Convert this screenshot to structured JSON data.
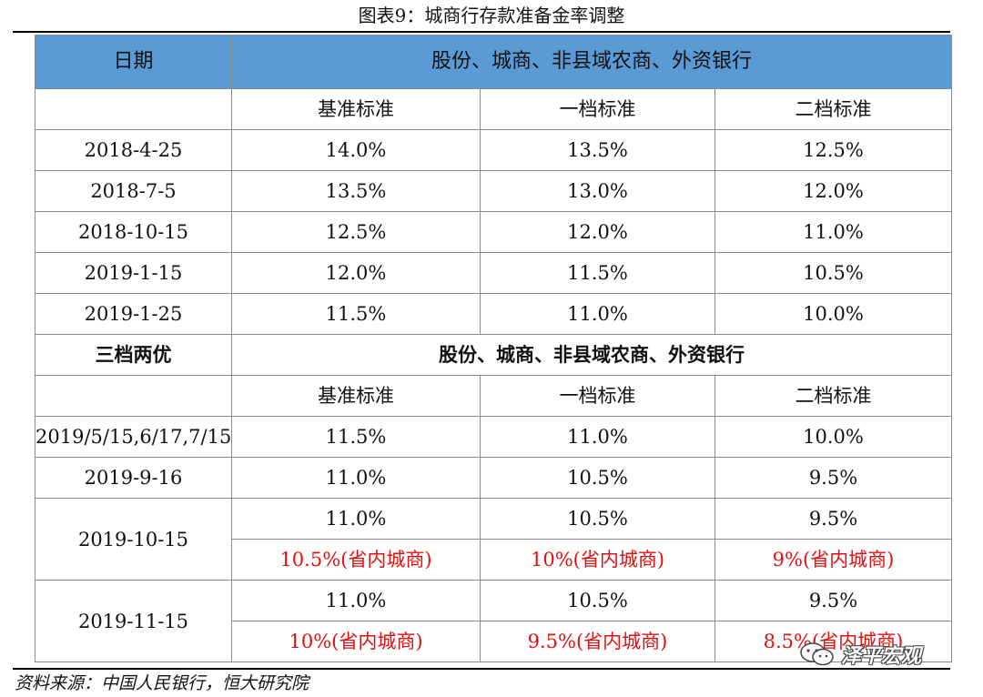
{
  "title": "图表9：城商行存款准备金率调整",
  "header": {
    "date": "日期",
    "banks": "股份、城商、非县域农商、外资银行"
  },
  "sub_headers": [
    "基准标准",
    "一档标准",
    "二档标准"
  ],
  "rows_a": [
    {
      "date": "2018-4-25",
      "values": [
        "14.0%",
        "13.5%",
        "12.5%"
      ]
    },
    {
      "date": "2018-7-5",
      "values": [
        "13.5%",
        "13.0%",
        "12.0%"
      ]
    },
    {
      "date": "2018-10-15",
      "values": [
        "12.5%",
        "12.0%",
        "11.0%"
      ]
    },
    {
      "date": "2019-1-15",
      "values": [
        "12.0%",
        "11.5%",
        "10.5%"
      ]
    },
    {
      "date": "2019-1-25",
      "values": [
        "11.5%",
        "11.0%",
        "10.0%"
      ]
    }
  ],
  "section2": {
    "label": "三档两优",
    "banks": "股份、城商、非县域农商、外资银行"
  },
  "rows_b": [
    {
      "date": "2019/5/15,6/17,7/15",
      "values": [
        "11.5%",
        "11.0%",
        "10.0%"
      ]
    },
    {
      "date": "2019-9-16",
      "values": [
        "11.0%",
        "10.5%",
        "9.5%"
      ]
    },
    {
      "date": "2019-10-15",
      "values": [
        "11.0%",
        "10.5%",
        "9.5%"
      ],
      "provincial": [
        "10.5%(省内城商)",
        "10%(省内城商)",
        "9%(省内城商)"
      ]
    },
    {
      "date": "2019-11-15",
      "values": [
        "11.0%",
        "10.5%",
        "9.5%"
      ],
      "provincial": [
        "10%(省内城商)",
        "9.5%(省内城商)",
        "8.5%(省内城商)"
      ]
    }
  ],
  "source": "资料来源：中国人民银行，恒大研究院",
  "watermark": "泽平宏观",
  "colors": {
    "header_bg": "#5b9bd5",
    "highlight_text": "#e01010",
    "border": "#8a8a8a"
  },
  "icons": {
    "watermark": "wechat-icon"
  }
}
